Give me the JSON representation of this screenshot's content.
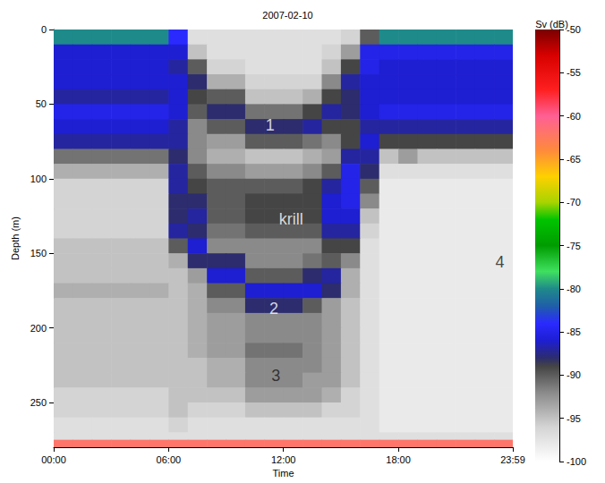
{
  "chart_data": {
    "type": "heatmap",
    "title": "2007-02-10",
    "x_label": "Time",
    "y_label": "Depth (m)",
    "xlim": [
      0,
      23.98
    ],
    "xticks": [
      {
        "value": 0,
        "label": "00:00"
      },
      {
        "value": 6,
        "label": "06:00"
      },
      {
        "value": 12,
        "label": "12:00"
      },
      {
        "value": 18,
        "label": "18:00"
      },
      {
        "value": 23.98,
        "label": "23:59"
      }
    ],
    "ylim": [
      0,
      280
    ],
    "yticks": [
      0,
      50,
      100,
      150,
      200,
      250
    ],
    "grid": false,
    "time_edges": [
      0,
      1,
      2,
      3,
      4,
      5,
      6,
      7,
      8,
      9,
      10,
      11,
      12,
      13,
      14,
      15,
      16,
      17,
      18,
      19,
      20,
      21,
      22,
      23,
      24
    ],
    "depth_edges": [
      0,
      10,
      20,
      30,
      40,
      50,
      60,
      70,
      80,
      90,
      100,
      110,
      120,
      130,
      140,
      150,
      160,
      170,
      180,
      190,
      200,
      210,
      220,
      230,
      240,
      250,
      260,
      270,
      275,
      280
    ],
    "cells": [
      [
        -80,
        -80,
        -80,
        -80,
        -80,
        -80,
        -84,
        -97,
        -97,
        -97,
        -97,
        -97,
        -97,
        -97,
        -97,
        -96,
        -90,
        -80,
        -80,
        -80,
        -80,
        -80,
        -80,
        -80
      ],
      [
        -86,
        -86,
        -86,
        -86,
        -86,
        -86,
        -86,
        -95,
        -97,
        -97,
        -97,
        -97,
        -97,
        -97,
        -96,
        -93,
        -85,
        -85,
        -85,
        -85,
        -85,
        -85,
        -85,
        -85
      ],
      [
        -86,
        -86,
        -86,
        -86,
        -86,
        -86,
        -87,
        -90,
        -96,
        -96,
        -97,
        -97,
        -97,
        -97,
        -95,
        -89,
        -85,
        -86,
        -86,
        -86,
        -86,
        -86,
        -86,
        -86
      ],
      [
        -86,
        -86,
        -86,
        -86,
        -86,
        -86,
        -86,
        -88,
        -94,
        -94,
        -96,
        -96,
        -96,
        -96,
        -92,
        -87,
        -86,
        -86,
        -86,
        -86,
        -86,
        -86,
        -86,
        -86
      ],
      [
        -87,
        -87,
        -87,
        -87,
        -87,
        -87,
        -86,
        -89,
        -90,
        -90,
        -95,
        -95,
        -95,
        -94,
        -89,
        -88,
        -86,
        -86,
        -86,
        -86,
        -86,
        -86,
        -86,
        -86
      ],
      [
        -85,
        -85,
        -85,
        -85,
        -85,
        -85,
        -86,
        -90,
        -88,
        -88,
        -91,
        -91,
        -91,
        -89,
        -87,
        -88,
        -86,
        -85,
        -85,
        -85,
        -85,
        -85,
        -85,
        -85
      ],
      [
        -86,
        -86,
        -86,
        -86,
        -86,
        -86,
        -87,
        -92,
        -90,
        -90,
        -88,
        -88,
        -88,
        -87,
        -89,
        -89,
        -87,
        -87,
        -87,
        -87,
        -87,
        -87,
        -87,
        -87
      ],
      [
        -87,
        -87,
        -87,
        -87,
        -87,
        -87,
        -87,
        -92,
        -93,
        -93,
        -90,
        -90,
        -90,
        -91,
        -92,
        -89,
        -86,
        -89,
        -89,
        -89,
        -89,
        -89,
        -89,
        -89
      ],
      [
        -91,
        -91,
        -91,
        -91,
        -91,
        -91,
        -88,
        -92,
        -94,
        -94,
        -95,
        -95,
        -95,
        -94,
        -93,
        -87,
        -87,
        -95,
        -93,
        -95,
        -95,
        -95,
        -95,
        -95
      ],
      [
        -94,
        -94,
        -94,
        -94,
        -94,
        -94,
        -87,
        -90,
        -92,
        -92,
        -93,
        -93,
        -93,
        -92,
        -90,
        -85,
        -88,
        -97,
        -97,
        -97,
        -97,
        -97,
        -97,
        -97
      ],
      [
        -96,
        -96,
        -96,
        -96,
        -96,
        -96,
        -87,
        -89,
        -90,
        -90,
        -90,
        -90,
        -90,
        -89,
        -87,
        -85,
        -90,
        -98,
        -98,
        -98,
        -98,
        -98,
        -98,
        -98
      ],
      [
        -96,
        -96,
        -96,
        -96,
        -96,
        -96,
        -88,
        -88,
        -90,
        -90,
        -89,
        -89,
        -89,
        -89,
        -86,
        -85,
        -92,
        -98,
        -98,
        -98,
        -98,
        -98,
        -98,
        -98
      ],
      [
        -96,
        -96,
        -96,
        -96,
        -96,
        -96,
        -88,
        -87,
        -90,
        -90,
        -89,
        -89,
        -89,
        -89,
        -86,
        -86,
        -95,
        -98,
        -98,
        -98,
        -98,
        -98,
        -98,
        -98
      ],
      [
        -96,
        -96,
        -96,
        -96,
        -96,
        -96,
        -87,
        -88,
        -91,
        -91,
        -90,
        -90,
        -90,
        -90,
        -87,
        -87,
        -96,
        -98,
        -98,
        -98,
        -98,
        -98,
        -98,
        -98
      ],
      [
        -95,
        -95,
        -95,
        -95,
        -95,
        -95,
        -90,
        -86,
        -92,
        -92,
        -92,
        -92,
        -92,
        -92,
        -89,
        -89,
        -97,
        -98,
        -98,
        -98,
        -98,
        -98,
        -98,
        -98
      ],
      [
        -95,
        -95,
        -95,
        -95,
        -95,
        -95,
        -94,
        -88,
        -88,
        -88,
        -92,
        -92,
        -92,
        -91,
        -90,
        -92,
        -97,
        -98,
        -98,
        -98,
        -98,
        -98,
        -98,
        -98
      ],
      [
        -95,
        -95,
        -95,
        -95,
        -95,
        -95,
        -95,
        -93,
        -86,
        -86,
        -90,
        -90,
        -90,
        -88,
        -87,
        -94,
        -97,
        -98,
        -98,
        -98,
        -98,
        -98,
        -98,
        -98
      ],
      [
        -94,
        -94,
        -94,
        -94,
        -94,
        -94,
        -95,
        -94,
        -90,
        -90,
        -86,
        -86,
        -86,
        -86,
        -88,
        -94,
        -97,
        -98,
        -98,
        -98,
        -98,
        -98,
        -98,
        -98
      ],
      [
        -95,
        -95,
        -95,
        -95,
        -95,
        -95,
        -95,
        -94,
        -92,
        -92,
        -88,
        -88,
        -88,
        -90,
        -93,
        -95,
        -97,
        -98,
        -98,
        -98,
        -98,
        -98,
        -98,
        -98
      ],
      [
        -95,
        -95,
        -95,
        -95,
        -95,
        -95,
        -95,
        -94,
        -93,
        -93,
        -92,
        -92,
        -92,
        -92,
        -93,
        -95,
        -97,
        -98,
        -98,
        -98,
        -98,
        -98,
        -98,
        -98
      ],
      [
        -95,
        -95,
        -95,
        -95,
        -95,
        -95,
        -95,
        -94,
        -93,
        -93,
        -92,
        -92,
        -92,
        -92,
        -93,
        -95,
        -97,
        -98,
        -98,
        -98,
        -98,
        -98,
        -98,
        -98
      ],
      [
        -95,
        -95,
        -95,
        -95,
        -95,
        -95,
        -95,
        -94,
        -93,
        -93,
        -91,
        -91,
        -91,
        -92,
        -93,
        -95,
        -97,
        -98,
        -98,
        -98,
        -98,
        -98,
        -98,
        -98
      ],
      [
        -95,
        -95,
        -95,
        -95,
        -95,
        -95,
        -95,
        -95,
        -94,
        -94,
        -92,
        -92,
        -92,
        -92,
        -93,
        -95,
        -97,
        -98,
        -98,
        -98,
        -98,
        -98,
        -98,
        -98
      ],
      [
        -95,
        -95,
        -95,
        -95,
        -95,
        -95,
        -95,
        -95,
        -94,
        -94,
        -92,
        -92,
        -92,
        -93,
        -93,
        -95,
        -97,
        -98,
        -98,
        -98,
        -98,
        -98,
        -98,
        -98
      ],
      [
        -96,
        -96,
        -96,
        -96,
        -96,
        -96,
        -95,
        -95,
        -95,
        -95,
        -93,
        -93,
        -93,
        -93,
        -94,
        -96,
        -97,
        -98,
        -98,
        -98,
        -98,
        -98,
        -98,
        -98
      ],
      [
        -96,
        -96,
        -96,
        -96,
        -96,
        -96,
        -95,
        -96,
        -96,
        -96,
        -95,
        -95,
        -95,
        -95,
        -96,
        -96,
        -97,
        -98,
        -98,
        -98,
        -98,
        -98,
        -98,
        -98
      ],
      [
        -97,
        -97,
        -97,
        -97,
        -97,
        -97,
        -96,
        -97,
        -97,
        -97,
        -97,
        -97,
        -97,
        -97,
        -97,
        -97,
        -97,
        -98,
        -98,
        -98,
        -98,
        -98,
        -98,
        -98
      ],
      [
        -97,
        -97,
        -97,
        -97,
        -97,
        -97,
        -97,
        -97,
        -97,
        -97,
        -97,
        -97,
        -97,
        -97,
        -97,
        -97,
        -97,
        -97,
        -97,
        -97,
        -97,
        -97,
        -97,
        -97
      ],
      [
        -62,
        -62,
        -62,
        -62,
        -62,
        -62,
        -62,
        -62,
        -62,
        -62,
        -62,
        -62,
        -62,
        -62,
        -62,
        -62,
        -62,
        -62,
        -62,
        -62,
        -62,
        -62,
        -62,
        -62
      ]
    ],
    "colorbar": {
      "title": "Sv (dB)",
      "range": [
        -100,
        -50
      ],
      "ticks": [
        -100,
        -95,
        -90,
        -85,
        -80,
        -75,
        -70,
        -65,
        -60,
        -55,
        -50
      ]
    },
    "annotations": [
      {
        "text": "1",
        "x": 11.3,
        "y": 64,
        "color": "#ffffff"
      },
      {
        "text": "krill",
        "x": 12.4,
        "y": 127,
        "color": "#ffffff"
      },
      {
        "text": "2",
        "x": 11.5,
        "y": 187,
        "color": "#ffffff"
      },
      {
        "text": "3",
        "x": 11.6,
        "y": 232,
        "color": "#1a1a1a"
      },
      {
        "text": "4",
        "x": 23.3,
        "y": 156,
        "color": "#1a1a1a"
      }
    ]
  }
}
